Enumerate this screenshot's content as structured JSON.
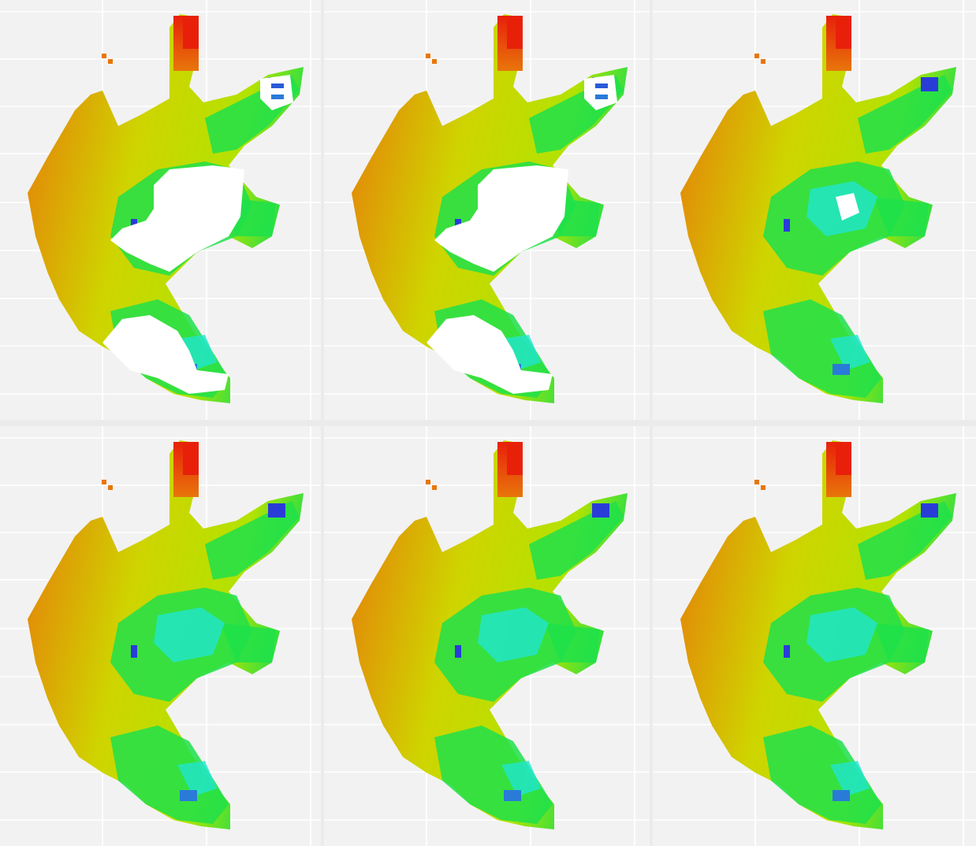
{
  "figure": {
    "panel_count": 6,
    "grid": {
      "rows": 2,
      "columns": 3
    },
    "color_scale": {
      "high": "#e8200a",
      "upper_mid": "#e8760a",
      "mid": "#b3e200",
      "low_mid": "#1fe04a",
      "low": "#20e6d0",
      "lowest": "#2a3cd8",
      "missing": "#ffffff"
    },
    "background": "#f2f2f2",
    "gridline_color": "#ffffff"
  },
  "panels": [
    {
      "id": "panel-1",
      "row": 1,
      "column": 1,
      "missing_cells": "large"
    },
    {
      "id": "panel-2",
      "row": 1,
      "column": 2,
      "missing_cells": "large"
    },
    {
      "id": "panel-3",
      "row": 1,
      "column": 3,
      "missing_cells": "small"
    },
    {
      "id": "panel-4",
      "row": 2,
      "column": 1,
      "missing_cells": "none"
    },
    {
      "id": "panel-5",
      "row": 2,
      "column": 2,
      "missing_cells": "none"
    },
    {
      "id": "panel-6",
      "row": 2,
      "column": 3,
      "missing_cells": "none"
    }
  ]
}
